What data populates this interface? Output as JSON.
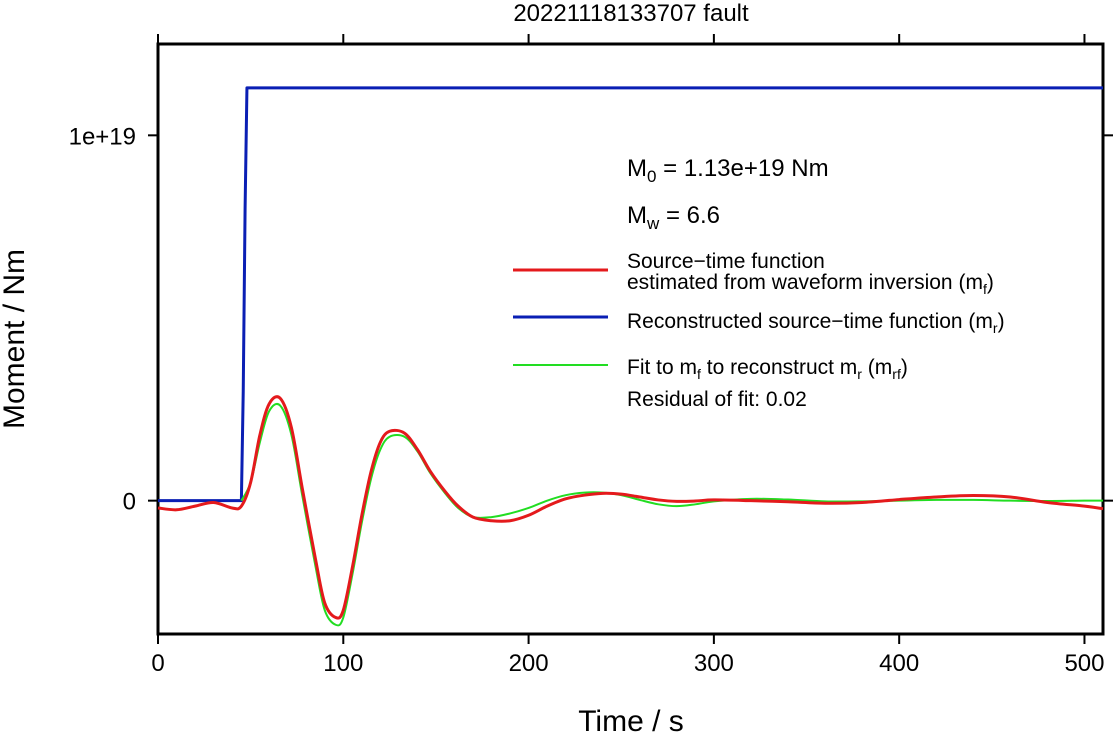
{
  "chart_data": {
    "type": "line",
    "title": "20221118133707 fault",
    "xlabel": "Time / s",
    "ylabel": "Moment / Nm",
    "xlim": [
      0,
      510
    ],
    "ylim": [
      -3.65e+18,
      1.25e+19
    ],
    "xticks": [
      0,
      100,
      200,
      300,
      400,
      500
    ],
    "xtick_labels": [
      "0",
      "100",
      "200",
      "300",
      "400",
      "500"
    ],
    "yticks": [
      0,
      1e+19
    ],
    "ytick_labels": [
      "0",
      "1e+19"
    ],
    "grid": false,
    "legend_placement": "top-right",
    "annotations": {
      "m0": {
        "symbol": "M",
        "sub": "0",
        "text": " = 1.13e+19 Nm"
      },
      "mw": {
        "symbol": "M",
        "sub": "w",
        "text": " = 6.6"
      },
      "residual": "Residual of fit: 0.02"
    },
    "legend": [
      {
        "series": "mf",
        "line1": "Source−time function",
        "line2_prefix": "estimated from waveform inversion (m",
        "line2_sub": "f",
        "line2_suffix": ")"
      },
      {
        "series": "mr",
        "prefix": "Reconstructed source−time function (m",
        "sub": "r",
        "suffix": ")"
      },
      {
        "series": "mrf",
        "p1": "Fit to m",
        "s1": "f",
        "p2": " to reconstruct m",
        "s2": "r",
        "p3": " (m",
        "s3": "rf",
        "p4": ")"
      }
    ],
    "series": [
      {
        "key": "mf",
        "color": "#e41a1c",
        "x": [
          0,
          10,
          20,
          30,
          40,
          45,
          50,
          55,
          60,
          66,
          72,
          78,
          85,
          90,
          96,
          100,
          105,
          110,
          115,
          120,
          125,
          133,
          140,
          147,
          155,
          162,
          170,
          180,
          190,
          200,
          210,
          220,
          230,
          240,
          250,
          260,
          270,
          280,
          290,
          300,
          320,
          340,
          360,
          380,
          400,
          420,
          440,
          460,
          480,
          500,
          510
        ],
        "y": [
          -2e+17,
          -2.5e+17,
          -1.5e+17,
          -5e+16,
          -2e+17,
          -1.5e+17,
          5e+17,
          1.8e+18,
          2.65e+18,
          2.8e+18,
          2e+18,
          3e+17,
          -1.6e+18,
          -2.8e+18,
          -3.2e+18,
          -3e+18,
          -1.8e+18,
          -4e+17,
          8e+17,
          1.6e+18,
          1.9e+18,
          1.85e+18,
          1.4e+18,
          8e+17,
          2.5e+17,
          -1.5e+17,
          -4.5e+17,
          -5.5e+17,
          -5.5e+17,
          -4e+17,
          -1.5e+17,
          5e+16,
          1.5e+17,
          2e+17,
          1.8e+17,
          1e+17,
          2e+16,
          -2e+16,
          -1e+16,
          2e+16,
          0.0,
          -3e+16,
          -7e+16,
          -5e+16,
          3e+16,
          1e+17,
          1.4e+17,
          1e+17,
          -5e+16,
          -1.5e+17,
          -2.2e+17
        ]
      },
      {
        "key": "mr",
        "color": "#0a1fb4",
        "x": [
          0,
          45,
          46,
          47,
          48,
          50,
          510
        ],
        "y": [
          0,
          0,
          3e+18,
          8e+18,
          1.13e+19,
          1.13e+19,
          1.13e+19
        ]
      },
      {
        "key": "mrf",
        "color": "#22dd22",
        "x": [
          45,
          50,
          55,
          60,
          66,
          72,
          78,
          85,
          90,
          96,
          100,
          105,
          110,
          115,
          120,
          125,
          133,
          140,
          147,
          155,
          162,
          170,
          180,
          190,
          200,
          210,
          220,
          230,
          240,
          250,
          260,
          270,
          280,
          290,
          300,
          320,
          340,
          360,
          380,
          400,
          420,
          440,
          460,
          480,
          500,
          510
        ],
        "y": [
          0.0,
          5e+17,
          1.6e+18,
          2.45e+18,
          2.6e+18,
          1.8e+18,
          1e+17,
          -1.8e+18,
          -3e+18,
          -3.4e+18,
          -3.2e+18,
          -2e+18,
          -6e+17,
          6e+17,
          1.4e+18,
          1.75e+18,
          1.75e+18,
          1.35e+18,
          7.5e+17,
          2e+17,
          -2e+17,
          -4.5e+17,
          -4.5e+17,
          -3.5e+17,
          -2e+17,
          0.0,
          1.5e+17,
          2.2e+17,
          2.2e+17,
          1.5e+17,
          2e+16,
          -1e+17,
          -1.5e+17,
          -1e+17,
          -2e+16,
          5e+16,
          3e+16,
          -2e+16,
          -2e+16,
          0.0,
          2e+16,
          2e+16,
          0.0,
          -1e+16,
          0.0,
          0.0
        ]
      }
    ]
  }
}
